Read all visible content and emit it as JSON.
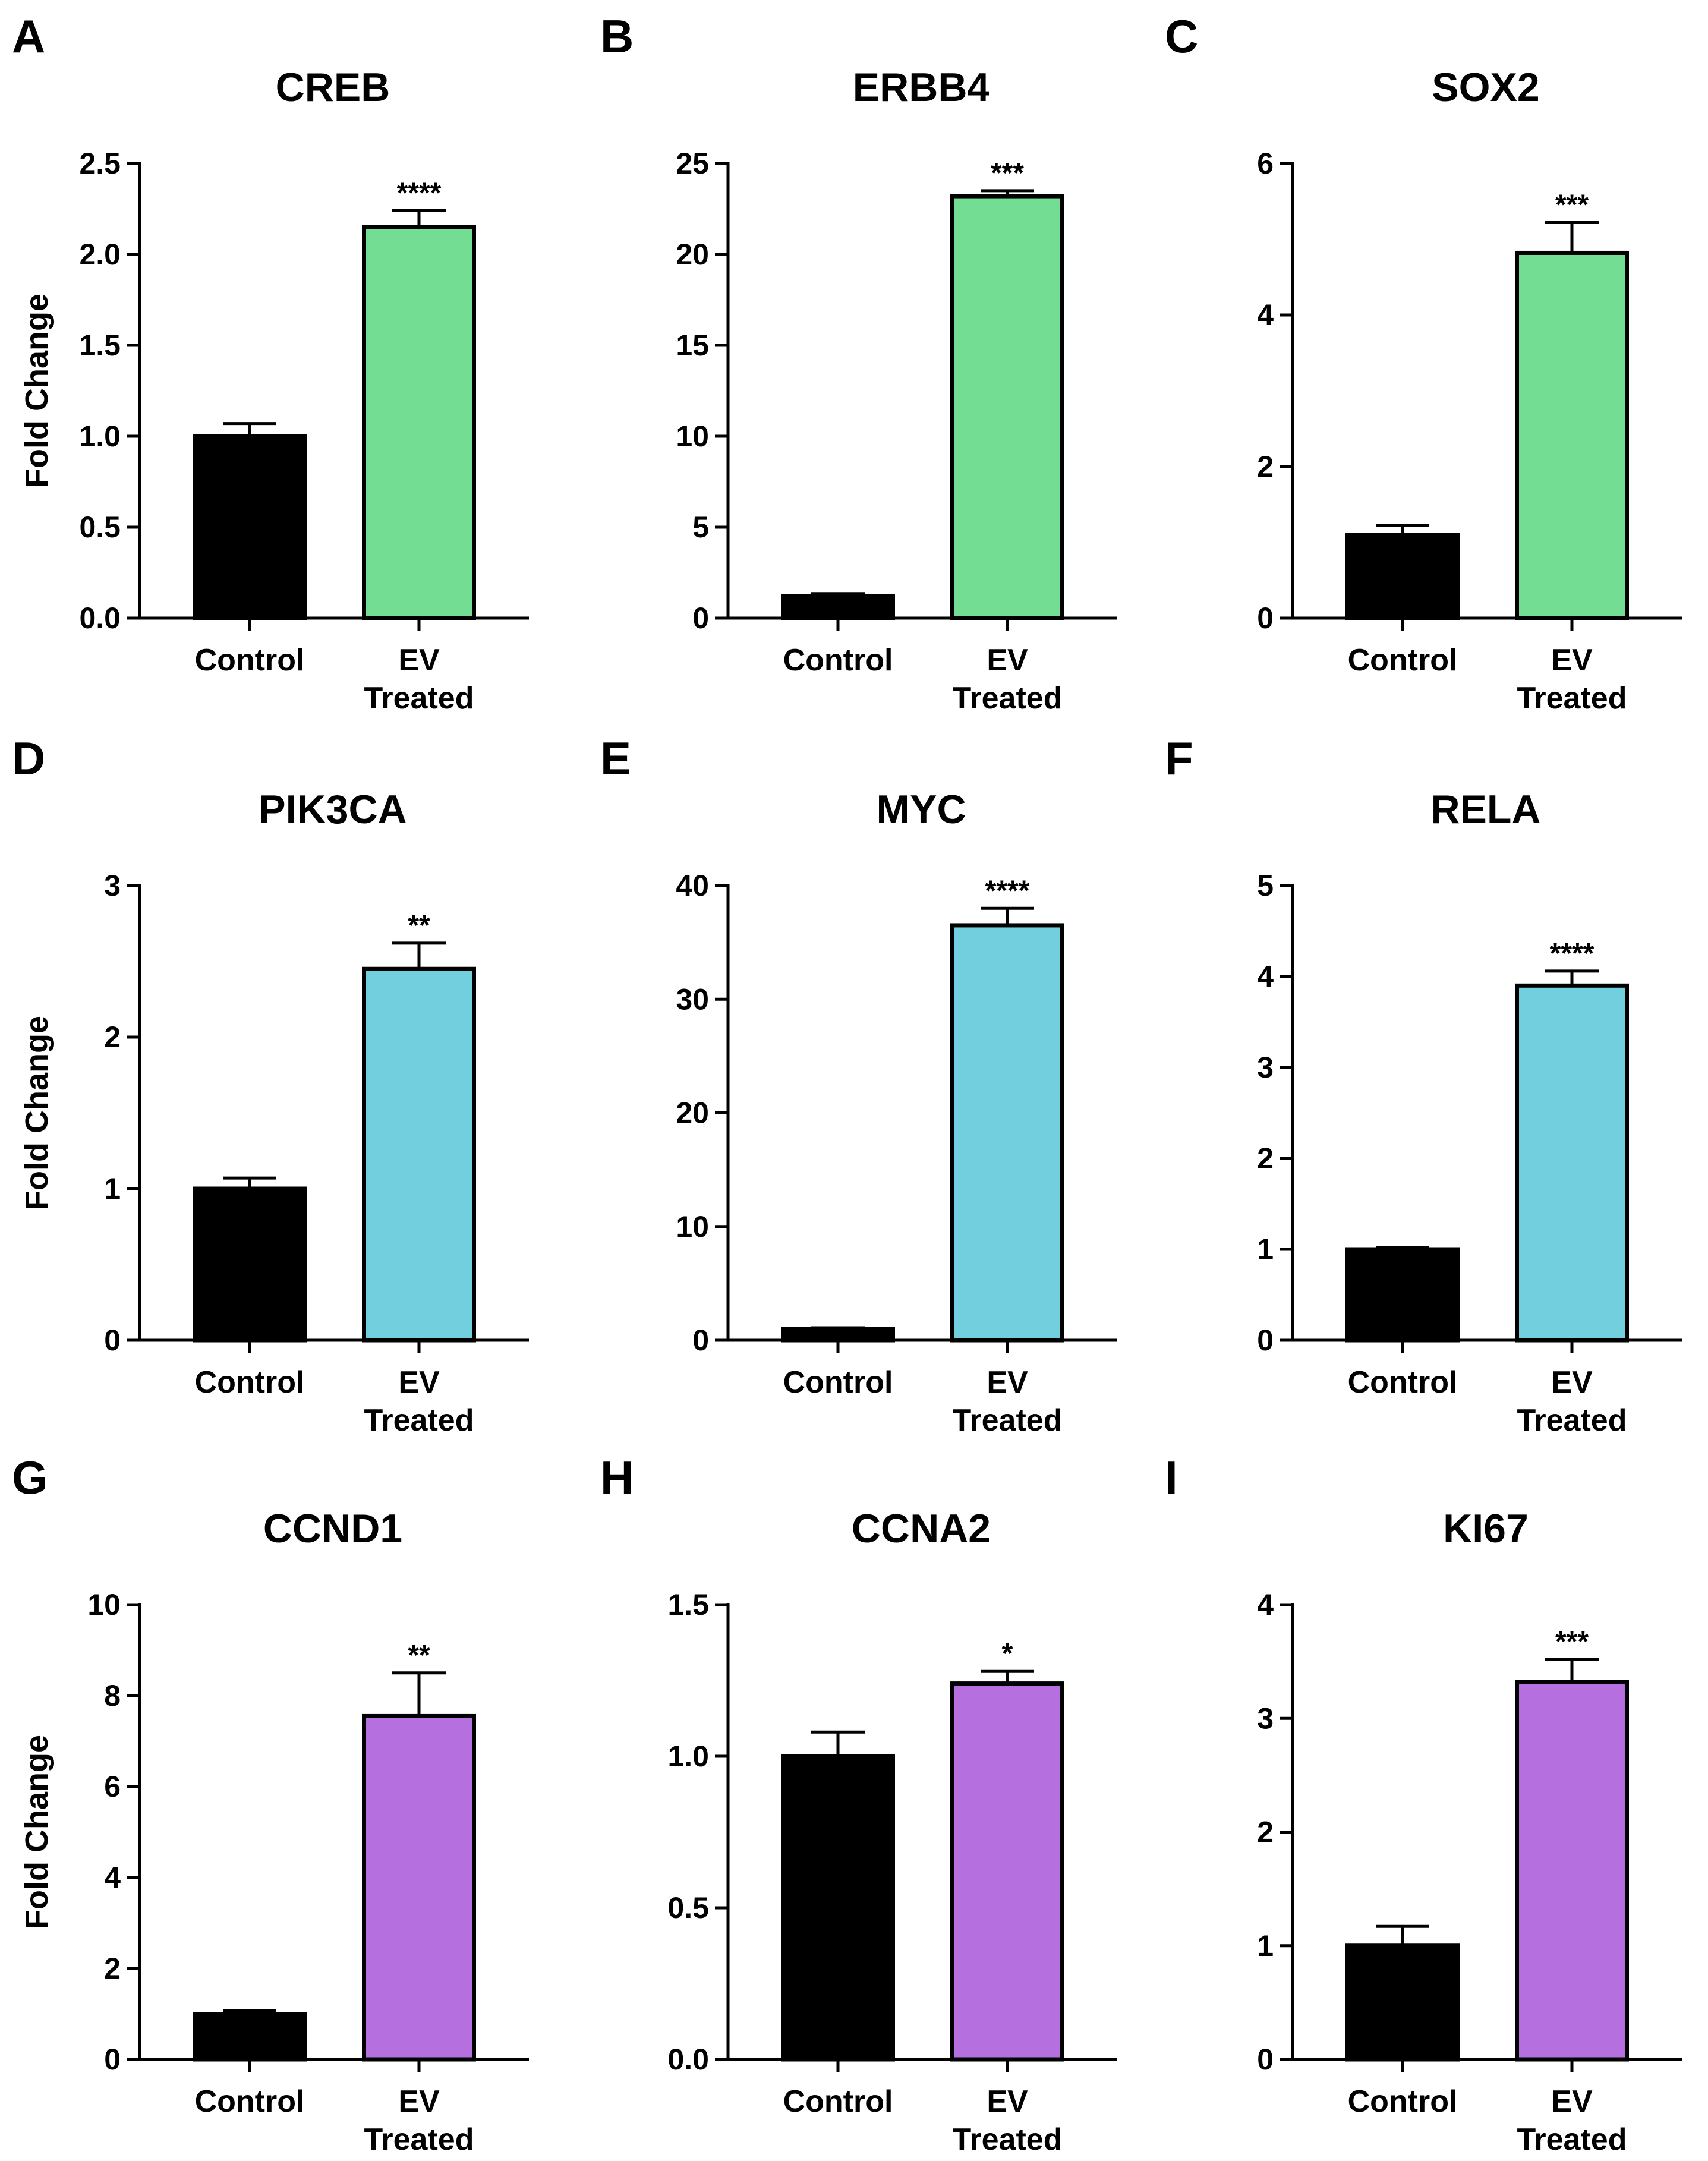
{
  "colors": {
    "control": "#000000",
    "green": "#73DD93",
    "blue": "#72CFDD",
    "purple": "#B56FDF",
    "axis": "#000000"
  },
  "chart_data": [
    {
      "panel": "A",
      "type": "bar",
      "title": "CREB",
      "ylabel": "Fold Change",
      "categories": [
        "Control",
        "EV\nTreated"
      ],
      "values": [
        1.0,
        2.15
      ],
      "errors": [
        0.07,
        0.09
      ],
      "significance": "****",
      "ylim": [
        0,
        2.5
      ],
      "yticks": [
        "0.0",
        "0.5",
        "1.0",
        "1.5",
        "2.0",
        "2.5"
      ],
      "color": "green"
    },
    {
      "panel": "B",
      "type": "bar",
      "title": "ERBB4",
      "ylabel": "",
      "categories": [
        "Control",
        "EV\nTreated"
      ],
      "values": [
        1.2,
        23.2
      ],
      "errors": [
        0.15,
        0.3
      ],
      "significance": "***",
      "ylim": [
        0,
        25
      ],
      "yticks": [
        "0",
        "5",
        "10",
        "15",
        "20",
        "25"
      ],
      "color": "green"
    },
    {
      "panel": "C",
      "type": "bar",
      "title": "SOX2",
      "ylabel": "",
      "categories": [
        "Control",
        "EV\nTreated"
      ],
      "values": [
        1.1,
        4.82
      ],
      "errors": [
        0.12,
        0.4
      ],
      "significance": "***",
      "ylim": [
        0,
        6
      ],
      "yticks": [
        "0",
        "2",
        "4",
        "6"
      ],
      "color": "green"
    },
    {
      "panel": "D",
      "type": "bar",
      "title": "PIK3CA",
      "ylabel": "Fold Change",
      "categories": [
        "Control",
        "EV\nTreated"
      ],
      "values": [
        1.0,
        2.45
      ],
      "errors": [
        0.07,
        0.17
      ],
      "significance": "**",
      "ylim": [
        0,
        3
      ],
      "yticks": [
        "0",
        "1",
        "2",
        "3"
      ],
      "color": "blue"
    },
    {
      "panel": "E",
      "type": "bar",
      "title": "MYC",
      "ylabel": "",
      "categories": [
        "Control",
        "EV\nTreated"
      ],
      "values": [
        1.0,
        36.5
      ],
      "errors": [
        0.1,
        1.5
      ],
      "significance": "****",
      "ylim": [
        0,
        40
      ],
      "yticks": [
        "0",
        "10",
        "20",
        "30",
        "40"
      ],
      "color": "blue"
    },
    {
      "panel": "F",
      "type": "bar",
      "title": "RELA",
      "ylabel": "",
      "categories": [
        "Control",
        "EV\nTreated"
      ],
      "values": [
        1.0,
        3.9
      ],
      "errors": [
        0.02,
        0.16
      ],
      "significance": "****",
      "ylim": [
        0,
        5
      ],
      "yticks": [
        "0",
        "1",
        "2",
        "3",
        "4",
        "5"
      ],
      "color": "blue"
    },
    {
      "panel": "G",
      "type": "bar",
      "title": "CCND1",
      "ylabel": "Fold Change",
      "categories": [
        "Control",
        "EV\nTreated"
      ],
      "values": [
        1.0,
        7.55
      ],
      "errors": [
        0.07,
        0.95
      ],
      "significance": "**",
      "ylim": [
        0,
        10
      ],
      "yticks": [
        "0",
        "2",
        "4",
        "6",
        "8",
        "10"
      ],
      "color": "purple"
    },
    {
      "panel": "H",
      "type": "bar",
      "title": "CCNA2",
      "ylabel": "",
      "categories": [
        "Control",
        "EV\nTreated"
      ],
      "values": [
        1.0,
        1.24
      ],
      "errors": [
        0.08,
        0.04
      ],
      "significance": "*",
      "ylim": [
        0,
        1.5
      ],
      "yticks": [
        "0.0",
        "0.5",
        "1.0",
        "1.5"
      ],
      "color": "purple"
    },
    {
      "panel": "I",
      "type": "bar",
      "title": "KI67",
      "ylabel": "",
      "categories": [
        "Control",
        "EV\nTreated"
      ],
      "values": [
        1.0,
        3.32
      ],
      "errors": [
        0.17,
        0.2
      ],
      "significance": "***",
      "ylim": [
        0,
        4
      ],
      "yticks": [
        "0",
        "1",
        "2",
        "3",
        "4"
      ],
      "color": "purple"
    }
  ]
}
